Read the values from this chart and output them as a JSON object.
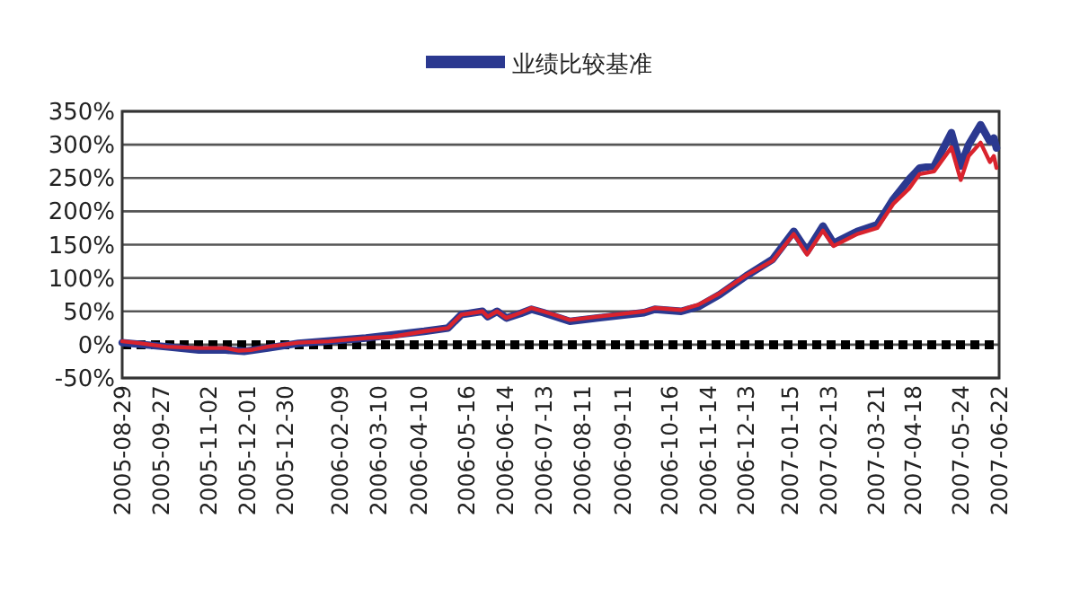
{
  "chart_data": {
    "type": "line",
    "legend": "top",
    "grid": "y",
    "line_style": "solid",
    "xlim": [
      "2005-08-29",
      "2007-06-22"
    ],
    "ylim": [
      -50,
      350
    ],
    "xticks": [
      "2005-08-29",
      "2005-09-27",
      "2005-11-02",
      "2005-12-01",
      "2005-12-30",
      "2006-02-09",
      "2006-03-10",
      "2006-04-10",
      "2006-05-16",
      "2006-06-14",
      "2006-07-13",
      "2006-08-11",
      "2006-09-11",
      "2006-10-16",
      "2006-11-14",
      "2006-12-13",
      "2007-01-15",
      "2007-02-13",
      "2007-03-21",
      "2007-04-18",
      "2007-05-24",
      "2007-06-22"
    ],
    "yticks": [
      {
        "value": -50,
        "label": "-50%"
      },
      {
        "value": 0,
        "label": "0%"
      },
      {
        "value": 50,
        "label": "50%"
      },
      {
        "value": 100,
        "label": "100%"
      },
      {
        "value": 150,
        "label": "150%"
      },
      {
        "value": 200,
        "label": "200%"
      },
      {
        "value": 250,
        "label": "250%"
      },
      {
        "value": 300,
        "label": "300%"
      },
      {
        "value": 350,
        "label": "350%"
      }
    ],
    "ref_lines": [
      {
        "axis": "y",
        "value": 0,
        "color": "#000000",
        "line_style": "dotted"
      }
    ],
    "series": [
      {
        "color": "#2b3990",
        "x": [
          "2005-08-29",
          "2005-10-01",
          "2005-10-26",
          "2005-11-15",
          "2005-11-29",
          "2005-12-17",
          "2006-01-09",
          "2006-03-01",
          "2006-04-14",
          "2006-05-02",
          "2006-05-12",
          "2006-05-28",
          "2006-06-01",
          "2006-06-08",
          "2006-06-15",
          "2006-06-26",
          "2006-07-04",
          "2006-07-13",
          "2006-08-02",
          "2006-08-23",
          "2006-09-27",
          "2006-10-05",
          "2006-10-25",
          "2006-11-07",
          "2006-11-23",
          "2006-12-13",
          "2007-01-02",
          "2007-01-18",
          "2007-01-28",
          "2007-02-09",
          "2007-02-17",
          "2007-03-07",
          "2007-03-22",
          "2007-04-03",
          "2007-04-15",
          "2007-04-23",
          "2007-05-04",
          "2007-05-17",
          "2007-05-24",
          "2007-05-30",
          "2007-06-08",
          "2007-06-15",
          "2007-06-18",
          "2007-06-20"
        ],
        "values": [
          3,
          -3,
          -8,
          -8,
          -10,
          -5,
          2,
          10,
          20,
          25,
          45,
          50,
          42,
          50,
          40,
          47,
          53,
          48,
          35,
          40,
          48,
          53,
          50,
          57,
          75,
          103,
          128,
          170,
          140,
          178,
          152,
          170,
          180,
          218,
          248,
          265,
          268,
          318,
          268,
          300,
          330,
          305,
          310,
          295
        ],
        "name": "业绩比较基准"
      },
      {
        "color": "#d9232d",
        "x": [
          "2005-08-29",
          "2005-09-12",
          "2005-10-01",
          "2005-10-26",
          "2005-11-15",
          "2005-11-25",
          "2005-12-04",
          "2005-12-17",
          "2006-01-09",
          "2006-02-01",
          "2006-03-01",
          "2006-03-21",
          "2006-04-14",
          "2006-05-02",
          "2006-05-12",
          "2006-05-28",
          "2006-06-01",
          "2006-06-08",
          "2006-06-15",
          "2006-06-26",
          "2006-07-04",
          "2006-07-16",
          "2006-08-02",
          "2006-08-23",
          "2006-09-27",
          "2006-10-05",
          "2006-10-25",
          "2006-11-07",
          "2006-11-23",
          "2006-12-13",
          "2007-01-02",
          "2007-01-18",
          "2007-01-28",
          "2007-02-09",
          "2007-02-17",
          "2007-03-07",
          "2007-03-22",
          "2007-04-03",
          "2007-04-15",
          "2007-04-23",
          "2007-05-04",
          "2007-05-17",
          "2007-05-24",
          "2007-05-30",
          "2007-06-08",
          "2007-06-15",
          "2007-06-18",
          "2007-06-20"
        ],
        "values": [
          5,
          2,
          -3,
          -5,
          -5,
          -9,
          -8,
          -3,
          3,
          5,
          10,
          12,
          20,
          25,
          45,
          50,
          42,
          50,
          40,
          48,
          55,
          48,
          37,
          42,
          50,
          55,
          52,
          60,
          77,
          104,
          126,
          166,
          135,
          171,
          148,
          166,
          175,
          211,
          234,
          256,
          260,
          296,
          247,
          283,
          303,
          274,
          283,
          265
        ]
      }
    ]
  }
}
